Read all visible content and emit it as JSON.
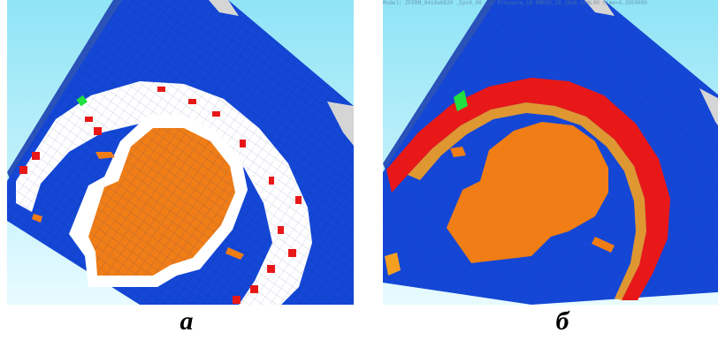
{
  "panels": [
    {
      "header": "",
      "caption": "а"
    },
    {
      "header": "Model: ZFERM_04i0a0820 _Eps0_00 ... Pressure_i0 PRESS_i0_lhs6 LPAL00 time=0.3550000",
      "caption": "б"
    }
  ],
  "colors": {
    "sky_top": "#8fe4f6",
    "sky_bottom": "#e8fbff",
    "block": "#1447d6",
    "block_grid": "#0a2f9e",
    "side_face": "#2a52b8",
    "corner": "#d5d5d5",
    "white_zone": "#ffffff",
    "cavity": "#f07d16",
    "failure": "#e81818",
    "marker": "#20e040"
  }
}
